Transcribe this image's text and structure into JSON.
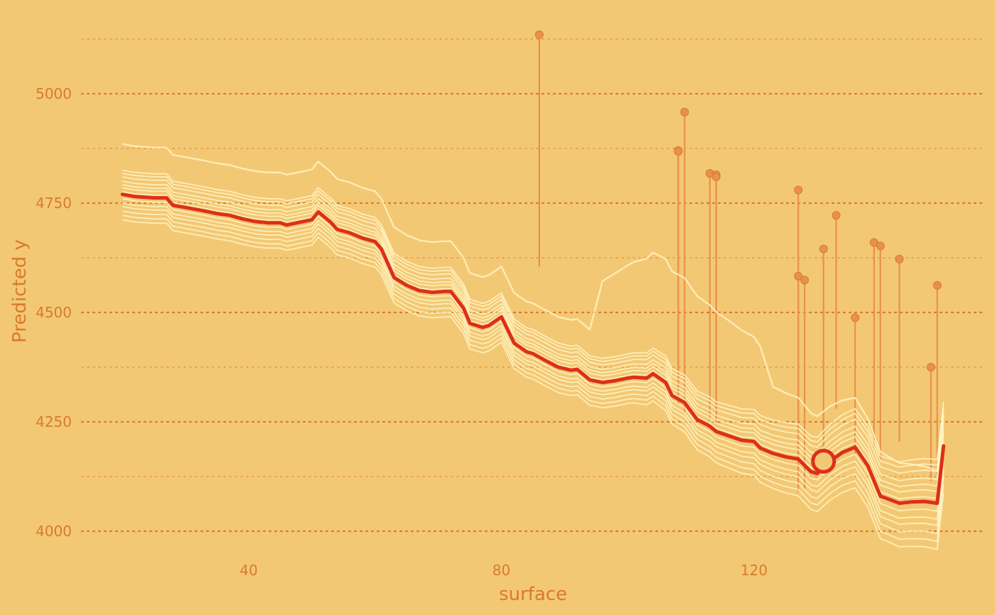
{
  "chart_data": {
    "type": "line",
    "title": "",
    "xlabel": "surface",
    "ylabel": "Predicted y",
    "xlim": [
      15,
      152
    ],
    "ylim": [
      3965,
      5165
    ],
    "x_ticks": [
      40,
      80,
      120
    ],
    "y_ticks": [
      4000,
      4250,
      4500,
      4750,
      5000
    ],
    "y_minor_grid": [
      4125,
      4375,
      4625,
      4875,
      5125
    ],
    "grid": true,
    "colors": {
      "background": "#f3c875",
      "grid": "#d97a2d",
      "text": "#d97a2d",
      "ice_line": "#fff4c2",
      "pdp_line": "#dd2f1a",
      "residual": "#e8914a"
    },
    "pdp": {
      "x": [
        20,
        22,
        25,
        27,
        28,
        30,
        33,
        35,
        37,
        39,
        41,
        43,
        45,
        46,
        48,
        50,
        51,
        53,
        54,
        56,
        58,
        60,
        61,
        63,
        65,
        67,
        69,
        71,
        72,
        74,
        75,
        77,
        78,
        80,
        82,
        84,
        85,
        87,
        89,
        91,
        92,
        94,
        96,
        98,
        100,
        101,
        103,
        104,
        106,
        107,
        109,
        111,
        113,
        114,
        116,
        118,
        120,
        121,
        123,
        125,
        127,
        129,
        130,
        132,
        134,
        136,
        138,
        140,
        141,
        143,
        145,
        147,
        149,
        150
      ],
      "y": [
        4770,
        4765,
        4762,
        4762,
        4745,
        4740,
        4732,
        4726,
        4722,
        4714,
        4708,
        4705,
        4705,
        4700,
        4706,
        4712,
        4730,
        4706,
        4690,
        4682,
        4670,
        4662,
        4645,
        4580,
        4562,
        4550,
        4546,
        4548,
        4548,
        4510,
        4475,
        4466,
        4470,
        4490,
        4430,
        4410,
        4406,
        4390,
        4375,
        4368,
        4370,
        4346,
        4340,
        4344,
        4350,
        4352,
        4350,
        4360,
        4340,
        4310,
        4294,
        4255,
        4240,
        4228,
        4218,
        4208,
        4205,
        4190,
        4178,
        4170,
        4165,
        4136,
        4132,
        4160,
        4180,
        4192,
        4150,
        4080,
        4075,
        4064,
        4067,
        4068,
        4064,
        4195
      ]
    },
    "ice": [
      {
        "offset": 115,
        "style": "upper"
      },
      {
        "offset": 55
      },
      {
        "offset": 48
      },
      {
        "offset": 40
      },
      {
        "offset": 30
      },
      {
        "offset": 22
      },
      {
        "offset": 15
      },
      {
        "offset": 6
      },
      {
        "offset": -10
      },
      {
        "offset": -20
      },
      {
        "offset": -28
      },
      {
        "offset": -38
      },
      {
        "offset": -48
      },
      {
        "offset": -58
      }
    ],
    "observations": [
      {
        "x": 86,
        "y": 5135,
        "yhat": 4605
      },
      {
        "x": 108,
        "y": 4870,
        "yhat": 4290
      },
      {
        "x": 108,
        "y": 4868,
        "yhat": 4290
      },
      {
        "x": 109,
        "y": 4958,
        "yhat": 4272
      },
      {
        "x": 113,
        "y": 4818,
        "yhat": 4255
      },
      {
        "x": 114,
        "y": 4815,
        "yhat": 4245
      },
      {
        "x": 114,
        "y": 4810,
        "yhat": 4245
      },
      {
        "x": 127,
        "y": 4780,
        "yhat": 4100
      },
      {
        "x": 127,
        "y": 4583,
        "yhat": 4090
      },
      {
        "x": 128,
        "y": 4574,
        "yhat": 4095
      },
      {
        "x": 131,
        "y": 4645,
        "yhat": 4165
      },
      {
        "x": 133,
        "y": 4722,
        "yhat": 4280
      },
      {
        "x": 136,
        "y": 4488,
        "yhat": 4175
      },
      {
        "x": 139,
        "y": 4660,
        "yhat": 4190
      },
      {
        "x": 140,
        "y": 4652,
        "yhat": 4165
      },
      {
        "x": 143,
        "y": 4622,
        "yhat": 4205
      },
      {
        "x": 148,
        "y": 4375,
        "yhat": 4115
      },
      {
        "x": 149,
        "y": 4562,
        "yhat": 4130
      }
    ],
    "highlight": {
      "x": 131,
      "y": 4160
    }
  }
}
